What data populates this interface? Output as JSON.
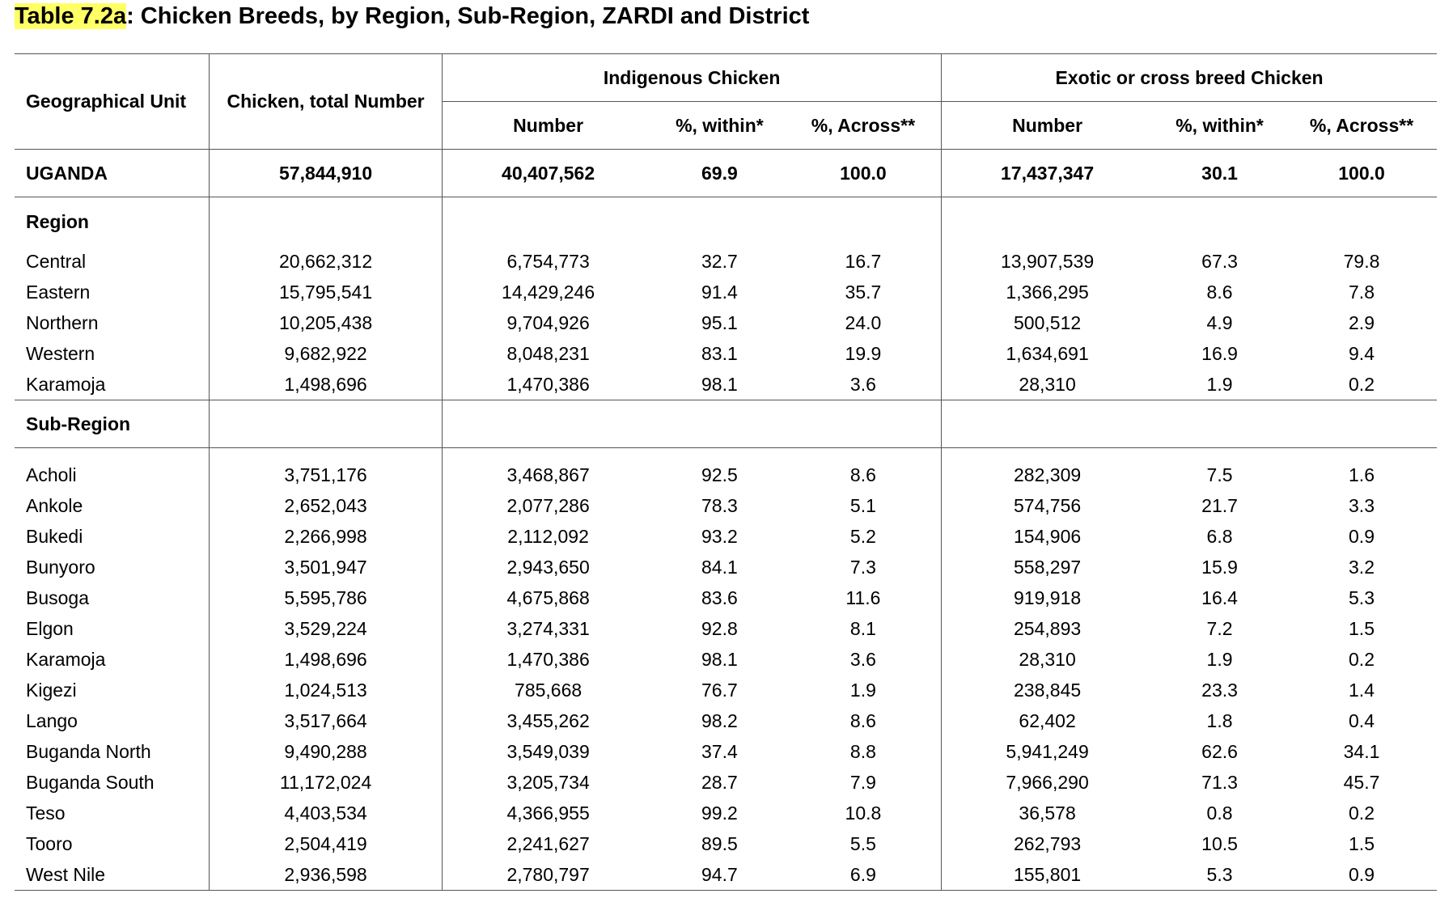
{
  "title": {
    "label": "Table 7.2a",
    "rest": ": Chicken Breeds, by Region, Sub-Region, ZARDI and District"
  },
  "headers": {
    "geo": "Geographical Unit",
    "total": "Chicken, total Number",
    "indigenous": "Indigenous Chicken",
    "exotic": "Exotic or cross breed Chicken",
    "number": "Number",
    "within": "%, within*",
    "across": "%, Across**"
  },
  "uganda": [
    "UGANDA",
    "57,844,910",
    "40,407,562",
    "69.9",
    "100.0",
    "17,437,347",
    "30.1",
    "100.0"
  ],
  "region_label": "Region",
  "regions": [
    [
      "Central",
      "20,662,312",
      "6,754,773",
      "32.7",
      "16.7",
      "13,907,539",
      "67.3",
      "79.8"
    ],
    [
      "Eastern",
      "15,795,541",
      "14,429,246",
      "91.4",
      "35.7",
      "1,366,295",
      "8.6",
      "7.8"
    ],
    [
      "Northern",
      "10,205,438",
      "9,704,926",
      "95.1",
      "24.0",
      "500,512",
      "4.9",
      "2.9"
    ],
    [
      "Western",
      "9,682,922",
      "8,048,231",
      "83.1",
      "19.9",
      "1,634,691",
      "16.9",
      "9.4"
    ],
    [
      "Karamoja",
      "1,498,696",
      "1,470,386",
      "98.1",
      "3.6",
      "28,310",
      "1.9",
      "0.2"
    ]
  ],
  "subregion_label": "Sub-Region",
  "subregions": [
    [
      "Acholi",
      "3,751,176",
      "3,468,867",
      "92.5",
      "8.6",
      "282,309",
      "7.5",
      "1.6"
    ],
    [
      "Ankole",
      "2,652,043",
      "2,077,286",
      "78.3",
      "5.1",
      "574,756",
      "21.7",
      "3.3"
    ],
    [
      "Bukedi",
      "2,266,998",
      "2,112,092",
      "93.2",
      "5.2",
      "154,906",
      "6.8",
      "0.9"
    ],
    [
      "Bunyoro",
      "3,501,947",
      "2,943,650",
      "84.1",
      "7.3",
      "558,297",
      "15.9",
      "3.2"
    ],
    [
      "Busoga",
      "5,595,786",
      "4,675,868",
      "83.6",
      "11.6",
      "919,918",
      "16.4",
      "5.3"
    ],
    [
      "Elgon",
      "3,529,224",
      "3,274,331",
      "92.8",
      "8.1",
      "254,893",
      "7.2",
      "1.5"
    ],
    [
      "Karamoja",
      "1,498,696",
      "1,470,386",
      "98.1",
      "3.6",
      "28,310",
      "1.9",
      "0.2"
    ],
    [
      "Kigezi",
      "1,024,513",
      "785,668",
      "76.7",
      "1.9",
      "238,845",
      "23.3",
      "1.4"
    ],
    [
      "Lango",
      "3,517,664",
      "3,455,262",
      "98.2",
      "8.6",
      "62,402",
      "1.8",
      "0.4"
    ],
    [
      "Buganda North",
      "9,490,288",
      "3,549,039",
      "37.4",
      "8.8",
      "5,941,249",
      "62.6",
      "34.1"
    ],
    [
      "Buganda South",
      "11,172,024",
      "3,205,734",
      "28.7",
      "7.9",
      "7,966,290",
      "71.3",
      "45.7"
    ],
    [
      "Teso",
      "4,403,534",
      "4,366,955",
      "99.2",
      "10.8",
      "36,578",
      "0.8",
      "0.2"
    ],
    [
      "Tooro",
      "2,504,419",
      "2,241,627",
      "89.5",
      "5.5",
      "262,793",
      "10.5",
      "1.5"
    ],
    [
      "West Nile",
      "2,936,598",
      "2,780,797",
      "94.7",
      "6.9",
      "155,801",
      "5.3",
      "0.9"
    ]
  ]
}
